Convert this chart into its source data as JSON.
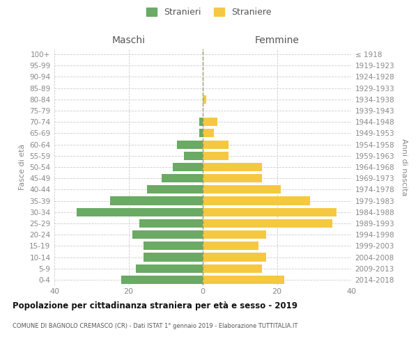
{
  "age_groups": [
    "100+",
    "95-99",
    "90-94",
    "85-89",
    "80-84",
    "75-79",
    "70-74",
    "65-69",
    "60-64",
    "55-59",
    "50-54",
    "45-49",
    "40-44",
    "35-39",
    "30-34",
    "25-29",
    "20-24",
    "15-19",
    "10-14",
    "5-9",
    "0-4"
  ],
  "birth_years": [
    "≤ 1918",
    "1919-1923",
    "1924-1928",
    "1929-1933",
    "1934-1938",
    "1939-1943",
    "1944-1948",
    "1949-1953",
    "1954-1958",
    "1959-1963",
    "1964-1968",
    "1969-1973",
    "1974-1978",
    "1979-1983",
    "1984-1988",
    "1989-1993",
    "1994-1998",
    "1999-2003",
    "2004-2008",
    "2009-2013",
    "2014-2018"
  ],
  "maschi": [
    0,
    0,
    0,
    0,
    0,
    0,
    1,
    1,
    7,
    5,
    8,
    11,
    15,
    25,
    34,
    17,
    19,
    16,
    16,
    18,
    22
  ],
  "femmine": [
    0,
    0,
    0,
    0,
    1,
    0,
    4,
    3,
    7,
    7,
    16,
    16,
    21,
    29,
    36,
    35,
    17,
    15,
    17,
    16,
    22
  ],
  "color_maschi": "#6aaa64",
  "color_femmine": "#f5c842",
  "title": "Popolazione per cittadinanza straniera per età e sesso - 2019",
  "subtitle": "COMUNE DI BAGNOLO CREMASCO (CR) - Dati ISTAT 1° gennaio 2019 - Elaborazione TUTTITALIA.IT",
  "header_left": "Maschi",
  "header_right": "Femmine",
  "ylabel_left": "Fasce di età",
  "ylabel_right": "Anni di nascita",
  "xlim": 40,
  "legend_stranieri": "Stranieri",
  "legend_straniere": "Straniere",
  "bg_color": "#ffffff",
  "grid_color": "#cccccc",
  "text_color": "#888888",
  "header_color": "#555555",
  "title_color": "#111111",
  "subtitle_color": "#555555",
  "dashes_color": "#999966"
}
